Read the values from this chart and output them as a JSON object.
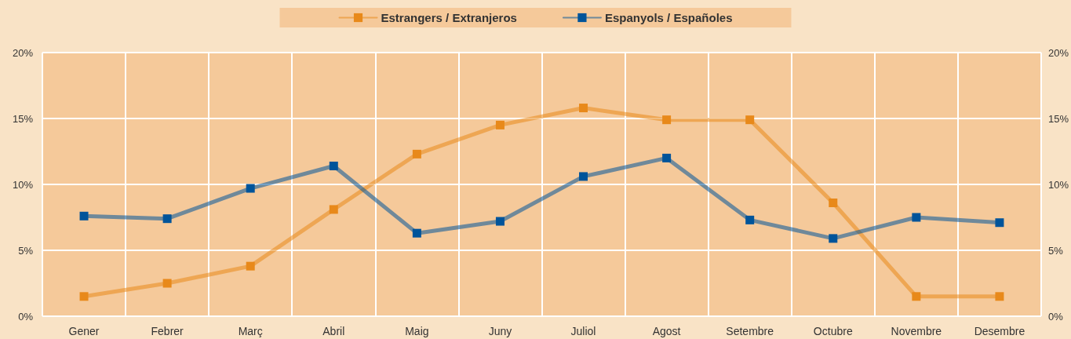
{
  "chart_data": {
    "type": "line",
    "categories": [
      "Gener",
      "Febrer",
      "Març",
      "Abril",
      "Maig",
      "Juny",
      "Juliol",
      "Agost",
      "Setembre",
      "Octubre",
      "Novembre",
      "Desembre"
    ],
    "series": [
      {
        "name": "Estrangers / Extranjeros",
        "color": "#e8891a",
        "values": [
          1.5,
          2.5,
          3.8,
          8.1,
          12.3,
          14.5,
          15.8,
          14.9,
          14.9,
          8.6,
          1.5,
          1.5
        ]
      },
      {
        "name": "Espanyols / Españoles",
        "color": "#00549a",
        "values": [
          7.6,
          7.4,
          9.7,
          11.4,
          6.3,
          7.2,
          10.6,
          12.0,
          7.3,
          5.9,
          7.5,
          7.1
        ]
      }
    ],
    "ylim": [
      0,
      20
    ],
    "yticks": [
      {
        "value": 0,
        "label": "0%"
      },
      {
        "value": 5,
        "label": "5%"
      },
      {
        "value": 10,
        "label": "10%"
      },
      {
        "value": 15,
        "label": "15%"
      },
      {
        "value": 20,
        "label": "20%"
      }
    ],
    "y2lim": [
      0,
      20
    ],
    "y2ticks": [
      {
        "value": 0,
        "label": "0%"
      },
      {
        "value": 5,
        "label": "5%"
      },
      {
        "value": 10,
        "label": "10%"
      },
      {
        "value": 15,
        "label": "15%"
      },
      {
        "value": 20,
        "label": "20%"
      }
    ],
    "grid": true,
    "legend": "top",
    "marker": "square",
    "line_style": "solid"
  }
}
